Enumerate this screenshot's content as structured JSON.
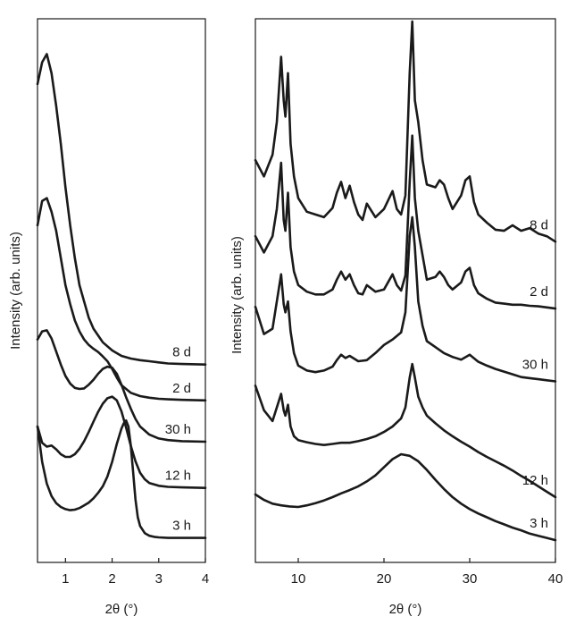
{
  "chart_data": [
    {
      "type": "line",
      "panel": "left",
      "xlabel": "2θ (°)",
      "ylabel": "Intensity (arb. units)",
      "xlim": [
        0.4,
        4
      ],
      "xticks": [
        1,
        2,
        3,
        4
      ],
      "ylim": [
        0,
        100
      ],
      "yticks": [],
      "grid": false,
      "series": [
        {
          "name": "8 d",
          "x": [
            0.4,
            0.5,
            0.6,
            0.7,
            0.8,
            0.9,
            1.0,
            1.1,
            1.2,
            1.3,
            1.4,
            1.5,
            1.6,
            1.8,
            2.0,
            2.2,
            2.4,
            2.6,
            2.8,
            3.0,
            3.2,
            3.5,
            4.0
          ],
          "y": [
            88,
            92,
            93.5,
            90,
            84,
            77,
            69,
            62,
            56,
            51,
            48,
            45,
            43,
            40.5,
            39,
            38,
            37.5,
            37.2,
            37,
            36.8,
            36.6,
            36.5,
            36.4
          ]
        },
        {
          "name": "2 d",
          "x": [
            0.4,
            0.5,
            0.6,
            0.7,
            0.8,
            0.9,
            1.0,
            1.1,
            1.2,
            1.3,
            1.4,
            1.5,
            1.6,
            1.7,
            1.8,
            1.9,
            2.0,
            2.1,
            2.2,
            2.4,
            2.6,
            2.8,
            3.0,
            3.2,
            3.5,
            4.0
          ],
          "y": [
            62,
            66.5,
            67,
            64.5,
            61,
            56,
            51,
            47.5,
            44.5,
            42.5,
            41,
            40,
            39.3,
            38.7,
            37.9,
            37,
            35.6,
            34,
            32.6,
            31.2,
            30.6,
            30.3,
            30.1,
            30,
            29.9,
            29.8
          ]
        },
        {
          "name": "30 h",
          "x": [
            0.4,
            0.5,
            0.6,
            0.7,
            0.8,
            0.9,
            1.0,
            1.1,
            1.2,
            1.3,
            1.4,
            1.5,
            1.6,
            1.7,
            1.8,
            1.9,
            2.0,
            2.1,
            2.2,
            2.3,
            2.4,
            2.5,
            2.6,
            2.8,
            3.0,
            3.2,
            3.5,
            4.0
          ],
          "y": [
            41,
            42.5,
            42.7,
            41.2,
            38.8,
            36.4,
            34.3,
            32.9,
            32.1,
            31.9,
            32,
            32.7,
            33.6,
            34.7,
            35.6,
            36,
            35.8,
            34.7,
            32.7,
            30.4,
            28.3,
            26.4,
            25,
            23.5,
            22.8,
            22.5,
            22.3,
            22.2
          ]
        },
        {
          "name": "12 h",
          "x": [
            0.4,
            0.5,
            0.6,
            0.7,
            0.8,
            0.9,
            1.0,
            1.1,
            1.2,
            1.3,
            1.4,
            1.5,
            1.6,
            1.7,
            1.8,
            1.9,
            2.0,
            2.1,
            2.2,
            2.3,
            2.4,
            2.5,
            2.6,
            2.7,
            2.8,
            3.0,
            3.2,
            3.5,
            4.0
          ],
          "y": [
            25,
            22,
            21.3,
            21.5,
            20.8,
            19.9,
            19.4,
            19.4,
            19.9,
            20.9,
            22.3,
            24,
            25.9,
            27.7,
            29.2,
            30.2,
            30.5,
            29.8,
            27.8,
            24.8,
            21.5,
            18.6,
            16.5,
            15.3,
            14.6,
            14.1,
            13.9,
            13.8,
            13.7
          ]
        },
        {
          "name": "3 h",
          "x": [
            0.4,
            0.5,
            0.6,
            0.7,
            0.8,
            0.9,
            1.0,
            1.1,
            1.2,
            1.3,
            1.4,
            1.5,
            1.6,
            1.7,
            1.8,
            1.9,
            2.0,
            2.1,
            2.2,
            2.25,
            2.3,
            2.35,
            2.4,
            2.45,
            2.5,
            2.55,
            2.6,
            2.7,
            2.8,
            2.9,
            3.0,
            3.2,
            3.5,
            4.0
          ],
          "y": [
            25,
            18.5,
            14.5,
            12.2,
            10.9,
            10.2,
            9.8,
            9.6,
            9.7,
            10,
            10.5,
            11,
            11.8,
            12.8,
            14,
            15.8,
            18.5,
            21.8,
            24.6,
            25.6,
            26.1,
            25,
            21.6,
            16.6,
            11.6,
            8.3,
            6.7,
            5.4,
            4.9,
            4.7,
            4.6,
            4.5,
            4.5,
            4.5
          ]
        }
      ]
    },
    {
      "type": "line",
      "panel": "right",
      "xlabel": "2θ (°)",
      "ylabel": "Intensity (arb. units)",
      "xlim": [
        5,
        40
      ],
      "xticks": [
        10,
        20,
        30,
        40
      ],
      "ylim": [
        0,
        100
      ],
      "yticks": [],
      "grid": false,
      "series": [
        {
          "name": "8 d",
          "x": [
            5,
            6,
            7,
            7.5,
            8,
            8.3,
            8.5,
            8.8,
            9.1,
            9.5,
            10,
            11,
            12,
            13,
            14,
            14.5,
            15,
            15.5,
            16,
            16.5,
            17,
            17.5,
            18,
            19,
            20,
            21,
            21.5,
            22,
            22.5,
            23,
            23.3,
            23.6,
            24,
            24.5,
            25,
            26,
            26.5,
            27,
            27.5,
            28,
            29,
            29.5,
            30,
            30.5,
            31,
            32,
            33,
            34,
            35,
            36,
            37,
            38,
            39,
            40
          ],
          "y": [
            74,
            71,
            75,
            81,
            93,
            85,
            82,
            90,
            77,
            71,
            67,
            64.5,
            64,
            63.5,
            65.2,
            68,
            70,
            67,
            69.3,
            66.3,
            64,
            63,
            66,
            63.5,
            65,
            68.3,
            65,
            64,
            67.5,
            90,
            99.5,
            85,
            81,
            74,
            69.5,
            69,
            70.3,
            69.5,
            67,
            65,
            67.5,
            70.3,
            71,
            66.3,
            64,
            62.5,
            61.2,
            61,
            62,
            61,
            61.5,
            60.5,
            60,
            59
          ]
        },
        {
          "name": "2 d",
          "x": [
            5,
            6,
            7,
            7.5,
            8,
            8.3,
            8.5,
            8.8,
            9.1,
            9.5,
            10,
            11,
            12,
            13,
            14,
            14.5,
            15,
            15.5,
            16,
            16.5,
            17,
            17.5,
            18,
            19,
            20,
            21,
            21.5,
            22,
            22.5,
            23,
            23.3,
            23.6,
            24,
            24.5,
            25,
            26,
            26.5,
            27,
            27.5,
            28,
            29,
            29.5,
            30,
            30.5,
            31,
            32,
            33,
            34,
            35,
            36,
            37,
            38,
            39,
            40
          ],
          "y": [
            60,
            57,
            60,
            65,
            73.5,
            63,
            61,
            68,
            58,
            53.5,
            51,
            49.8,
            49.3,
            49.3,
            50.2,
            52,
            53.5,
            52,
            53,
            51,
            49.5,
            49.3,
            51,
            49.8,
            50.2,
            53,
            51,
            50,
            52.8,
            70,
            78.5,
            67,
            61,
            56.5,
            52,
            52.5,
            53.5,
            52.5,
            51,
            50.2,
            51.5,
            53.5,
            54.2,
            51,
            49.5,
            48.5,
            47.8,
            47.6,
            47.4,
            47.4,
            47.2,
            47.1,
            46.9,
            46.7
          ]
        },
        {
          "name": "30 h",
          "x": [
            5,
            6,
            7,
            7.5,
            8,
            8.3,
            8.5,
            8.8,
            9.1,
            9.5,
            10,
            11,
            12,
            13,
            14,
            14.5,
            15,
            15.5,
            16,
            17,
            18,
            19,
            20,
            21,
            22,
            22.5,
            23,
            23.3,
            23.6,
            24,
            24.5,
            25,
            26,
            27,
            28,
            29,
            30,
            31,
            32,
            33,
            34,
            35,
            36,
            37,
            38,
            39,
            40
          ],
          "y": [
            47,
            42,
            43,
            48,
            53,
            47.5,
            46,
            48,
            42.5,
            38.5,
            36.2,
            35.3,
            35,
            35.3,
            36,
            37.2,
            38.2,
            37.6,
            38,
            37,
            37.2,
            38.5,
            40,
            41,
            42.3,
            46,
            60,
            63.5,
            58,
            48,
            43.5,
            40.7,
            39.6,
            38.5,
            37.8,
            37.3,
            38.2,
            36.9,
            36.2,
            35.6,
            35.1,
            34.6,
            34.1,
            33.9,
            33.7,
            33.5,
            33.3
          ]
        },
        {
          "name": "12 h",
          "x": [
            5,
            6,
            7,
            7.5,
            8,
            8.3,
            8.5,
            8.8,
            9.1,
            9.5,
            10,
            11,
            12,
            13,
            14,
            15,
            16,
            17,
            18,
            19,
            20,
            21,
            22,
            22.5,
            23,
            23.3,
            23.6,
            24,
            24.5,
            25,
            26,
            27,
            28,
            29,
            30,
            31,
            32,
            33,
            34,
            35,
            36,
            37,
            38,
            39,
            40
          ],
          "y": [
            32.5,
            28,
            26,
            28.5,
            31,
            28,
            27,
            29,
            25,
            23.2,
            22.5,
            22.1,
            21.8,
            21.6,
            21.8,
            22,
            22,
            22.3,
            22.7,
            23.2,
            24,
            25,
            26.5,
            28.5,
            34,
            36.5,
            34,
            30.5,
            28.5,
            27,
            25.6,
            24.3,
            23.2,
            22.2,
            21.3,
            20.3,
            19.4,
            18.6,
            17.8,
            16.9,
            15.9,
            15,
            14,
            13,
            12
          ]
        },
        {
          "name": "3 h",
          "x": [
            5,
            6,
            7,
            8,
            9,
            10,
            11,
            12,
            13,
            14,
            15,
            16,
            17,
            18,
            19,
            20,
            21,
            22,
            23,
            24,
            25,
            26,
            27,
            28,
            29,
            30,
            31,
            32,
            33,
            34,
            35,
            36,
            37,
            38,
            39,
            40
          ],
          "y": [
            12.5,
            11.5,
            10.8,
            10.5,
            10.3,
            10.2,
            10.5,
            10.9,
            11.4,
            12,
            12.7,
            13.3,
            14,
            14.9,
            16,
            17.5,
            19,
            19.9,
            19.6,
            18.6,
            17,
            15.2,
            13.5,
            12,
            10.8,
            9.8,
            9,
            8.3,
            7.6,
            7,
            6.4,
            5.9,
            5.3,
            4.9,
            4.5,
            4.1
          ]
        }
      ]
    }
  ]
}
